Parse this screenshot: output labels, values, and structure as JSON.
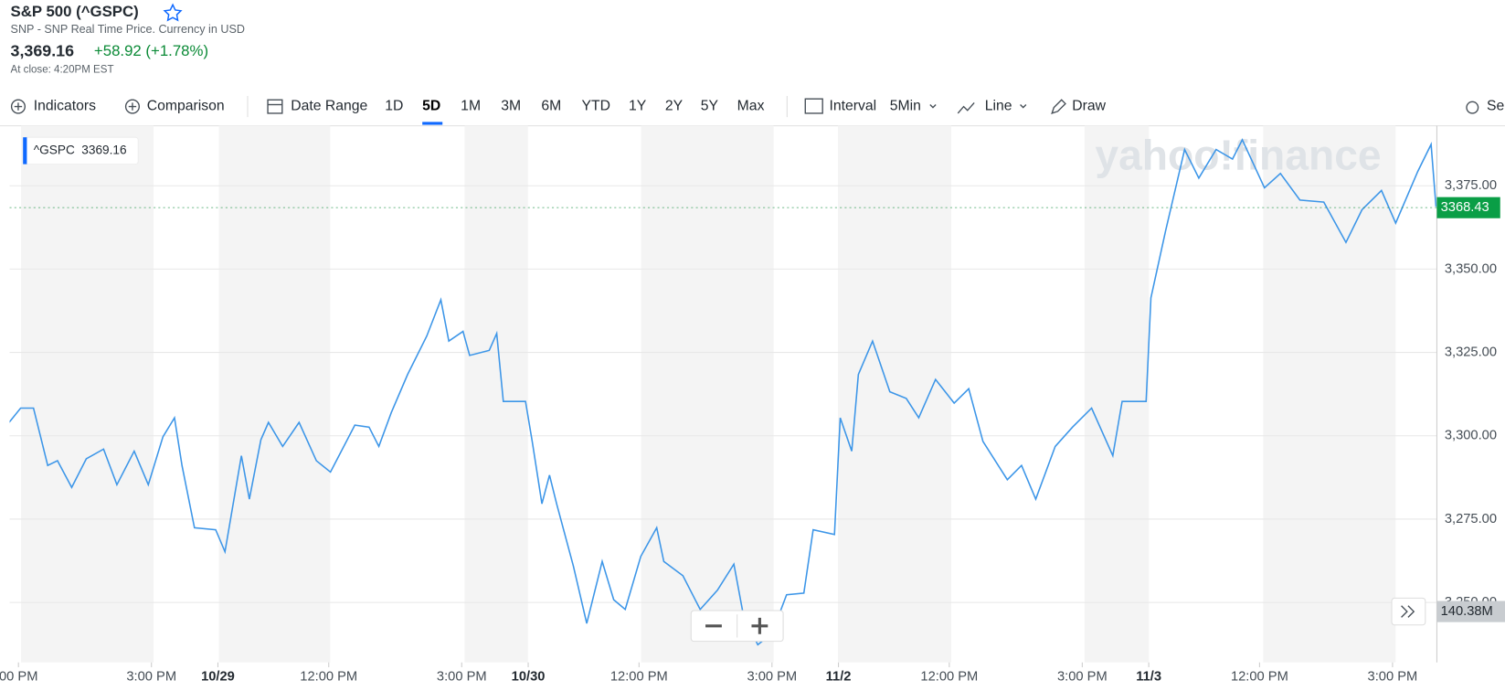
{
  "header": {
    "title": "S&P 500 (^GSPC)",
    "subtitle": "SNP - SNP Real Time Price. Currency in USD",
    "price": "3,369.16",
    "change": "+58.92 (+1.78%)",
    "close_note": "At close: 4:20PM EST"
  },
  "toolbar": {
    "indicators": "Indicators",
    "comparison": "Comparison",
    "date_range": "Date Range",
    "ranges": [
      "1D",
      "5D",
      "1M",
      "3M",
      "6M",
      "YTD",
      "1Y",
      "2Y",
      "5Y",
      "Max"
    ],
    "interval": "Interval",
    "interval_value": "5Min",
    "line": "Line",
    "draw": "Draw",
    "settings": "Se"
  },
  "chart_data": {
    "type": "line",
    "watermark": "yahoo!finance",
    "legend_value": 3369.16,
    "last_price": 3368.43,
    "volume_label": "140.38M",
    "x": [
      2.29,
      2.55,
      2.84,
      3.16,
      3.38,
      3.7,
      4.03,
      4.42,
      4.72,
      5.11,
      5.43,
      5.76,
      6.02,
      6.19,
      6.47,
      6.95,
      7.16,
      7.53,
      7.71,
      7.97,
      8.14,
      8.46,
      8.83,
      9.22,
      9.54,
      10.09,
      10.41,
      10.63,
      10.91,
      11.28,
      11.71,
      12.03,
      12.21,
      12.53,
      12.68,
      13.12,
      13.29,
      13.44,
      13.94,
      14.09,
      14.31,
      14.48,
      14.64,
      15.02,
      15.32,
      15.67,
      15.93,
      16.19,
      16.54,
      16.9,
      17.06,
      17.49,
      17.88,
      18.27,
      18.64,
      18.85,
      19.18,
      19.5,
      19.83,
      20.22,
      20.43,
      20.91,
      21.04,
      21.3,
      21.45,
      21.77,
      22.16,
      22.53,
      22.81,
      23.19,
      23.61,
      23.94,
      24.26,
      24.81,
      25.13,
      25.45,
      25.89,
      26.28,
      26.71,
      27.19,
      27.4,
      27.94,
      28.05,
      28.38,
      28.81,
      29.13,
      29.52,
      29.89,
      30.11,
      30.61,
      30.97,
      31.41,
      31.95,
      32.45,
      32.81,
      33.25,
      33.57,
      34.07,
      34.37,
      34.48
    ],
    "series": [
      {
        "name": "^GSPC",
        "color": "#3d96e8",
        "values": [
          3304.0,
          3308.3,
          3308.3,
          3291.1,
          3292.5,
          3284.5,
          3293.1,
          3296.0,
          3285.3,
          3295.4,
          3285.3,
          3299.7,
          3305.4,
          3291.1,
          3272.4,
          3271.8,
          3265.2,
          3294.0,
          3281.0,
          3298.8,
          3304.0,
          3296.8,
          3304.0,
          3292.5,
          3289.1,
          3303.2,
          3302.6,
          3296.8,
          3306.9,
          3318.4,
          3329.9,
          3340.8,
          3328.4,
          3331.3,
          3324.1,
          3325.6,
          3330.7,
          3310.3,
          3310.3,
          3298.3,
          3279.6,
          3288.2,
          3279.6,
          3260.9,
          3243.7,
          3262.3,
          3250.8,
          3247.9,
          3263.8,
          3272.4,
          3262.3,
          3258.0,
          3247.9,
          3253.7,
          3261.5,
          3246.5,
          3237.3,
          3240.7,
          3252.3,
          3252.8,
          3271.8,
          3270.4,
          3305.4,
          3295.4,
          3318.4,
          3328.4,
          3313.2,
          3311.2,
          3305.4,
          3316.9,
          3309.8,
          3314.1,
          3298.3,
          3286.8,
          3291.1,
          3281.0,
          3296.8,
          3302.6,
          3308.3,
          3294.0,
          3310.3,
          3310.3,
          3341.4,
          3361.5,
          3385.9,
          3377.3,
          3385.9,
          3383.0,
          3388.8,
          3374.4,
          3378.7,
          3370.7,
          3370.1,
          3358.0,
          3367.8,
          3373.6,
          3363.8,
          3379.3,
          3387.4,
          3368.7
        ]
      }
    ],
    "xlim": [
      2.3,
      34.5
    ],
    "ylim": [
      3232,
      3393
    ],
    "xticks": [
      {
        "value": 2.5,
        "label": "00 PM"
      },
      {
        "value": 5.5,
        "label": "3:00 PM"
      },
      {
        "value": 7,
        "label": "10/29"
      },
      {
        "value": 9.5,
        "label": "12:00 PM"
      },
      {
        "value": 12.5,
        "label": "3:00 PM"
      },
      {
        "value": 14,
        "label": "10/30"
      },
      {
        "value": 16.5,
        "label": "12:00 PM"
      },
      {
        "value": 19.5,
        "label": "3:00 PM"
      },
      {
        "value": 21,
        "label": "11/2"
      },
      {
        "value": 23.5,
        "label": "12:00 PM"
      },
      {
        "value": 26.5,
        "label": "3:00 PM"
      },
      {
        "value": 28,
        "label": "11/3"
      },
      {
        "value": 30.5,
        "label": "12:00 PM"
      },
      {
        "value": 33.5,
        "label": "3:00 PM"
      }
    ],
    "yticks": [
      {
        "value": 3250,
        "label": "3,250.00"
      },
      {
        "value": 3275,
        "label": "3,275.00"
      },
      {
        "value": 3300,
        "label": "3,300.00"
      },
      {
        "value": 3325,
        "label": "3,325.00"
      },
      {
        "value": 3350,
        "label": "3,350.00"
      },
      {
        "value": 3375,
        "label": "3,375.00"
      }
    ],
    "grid": true
  }
}
